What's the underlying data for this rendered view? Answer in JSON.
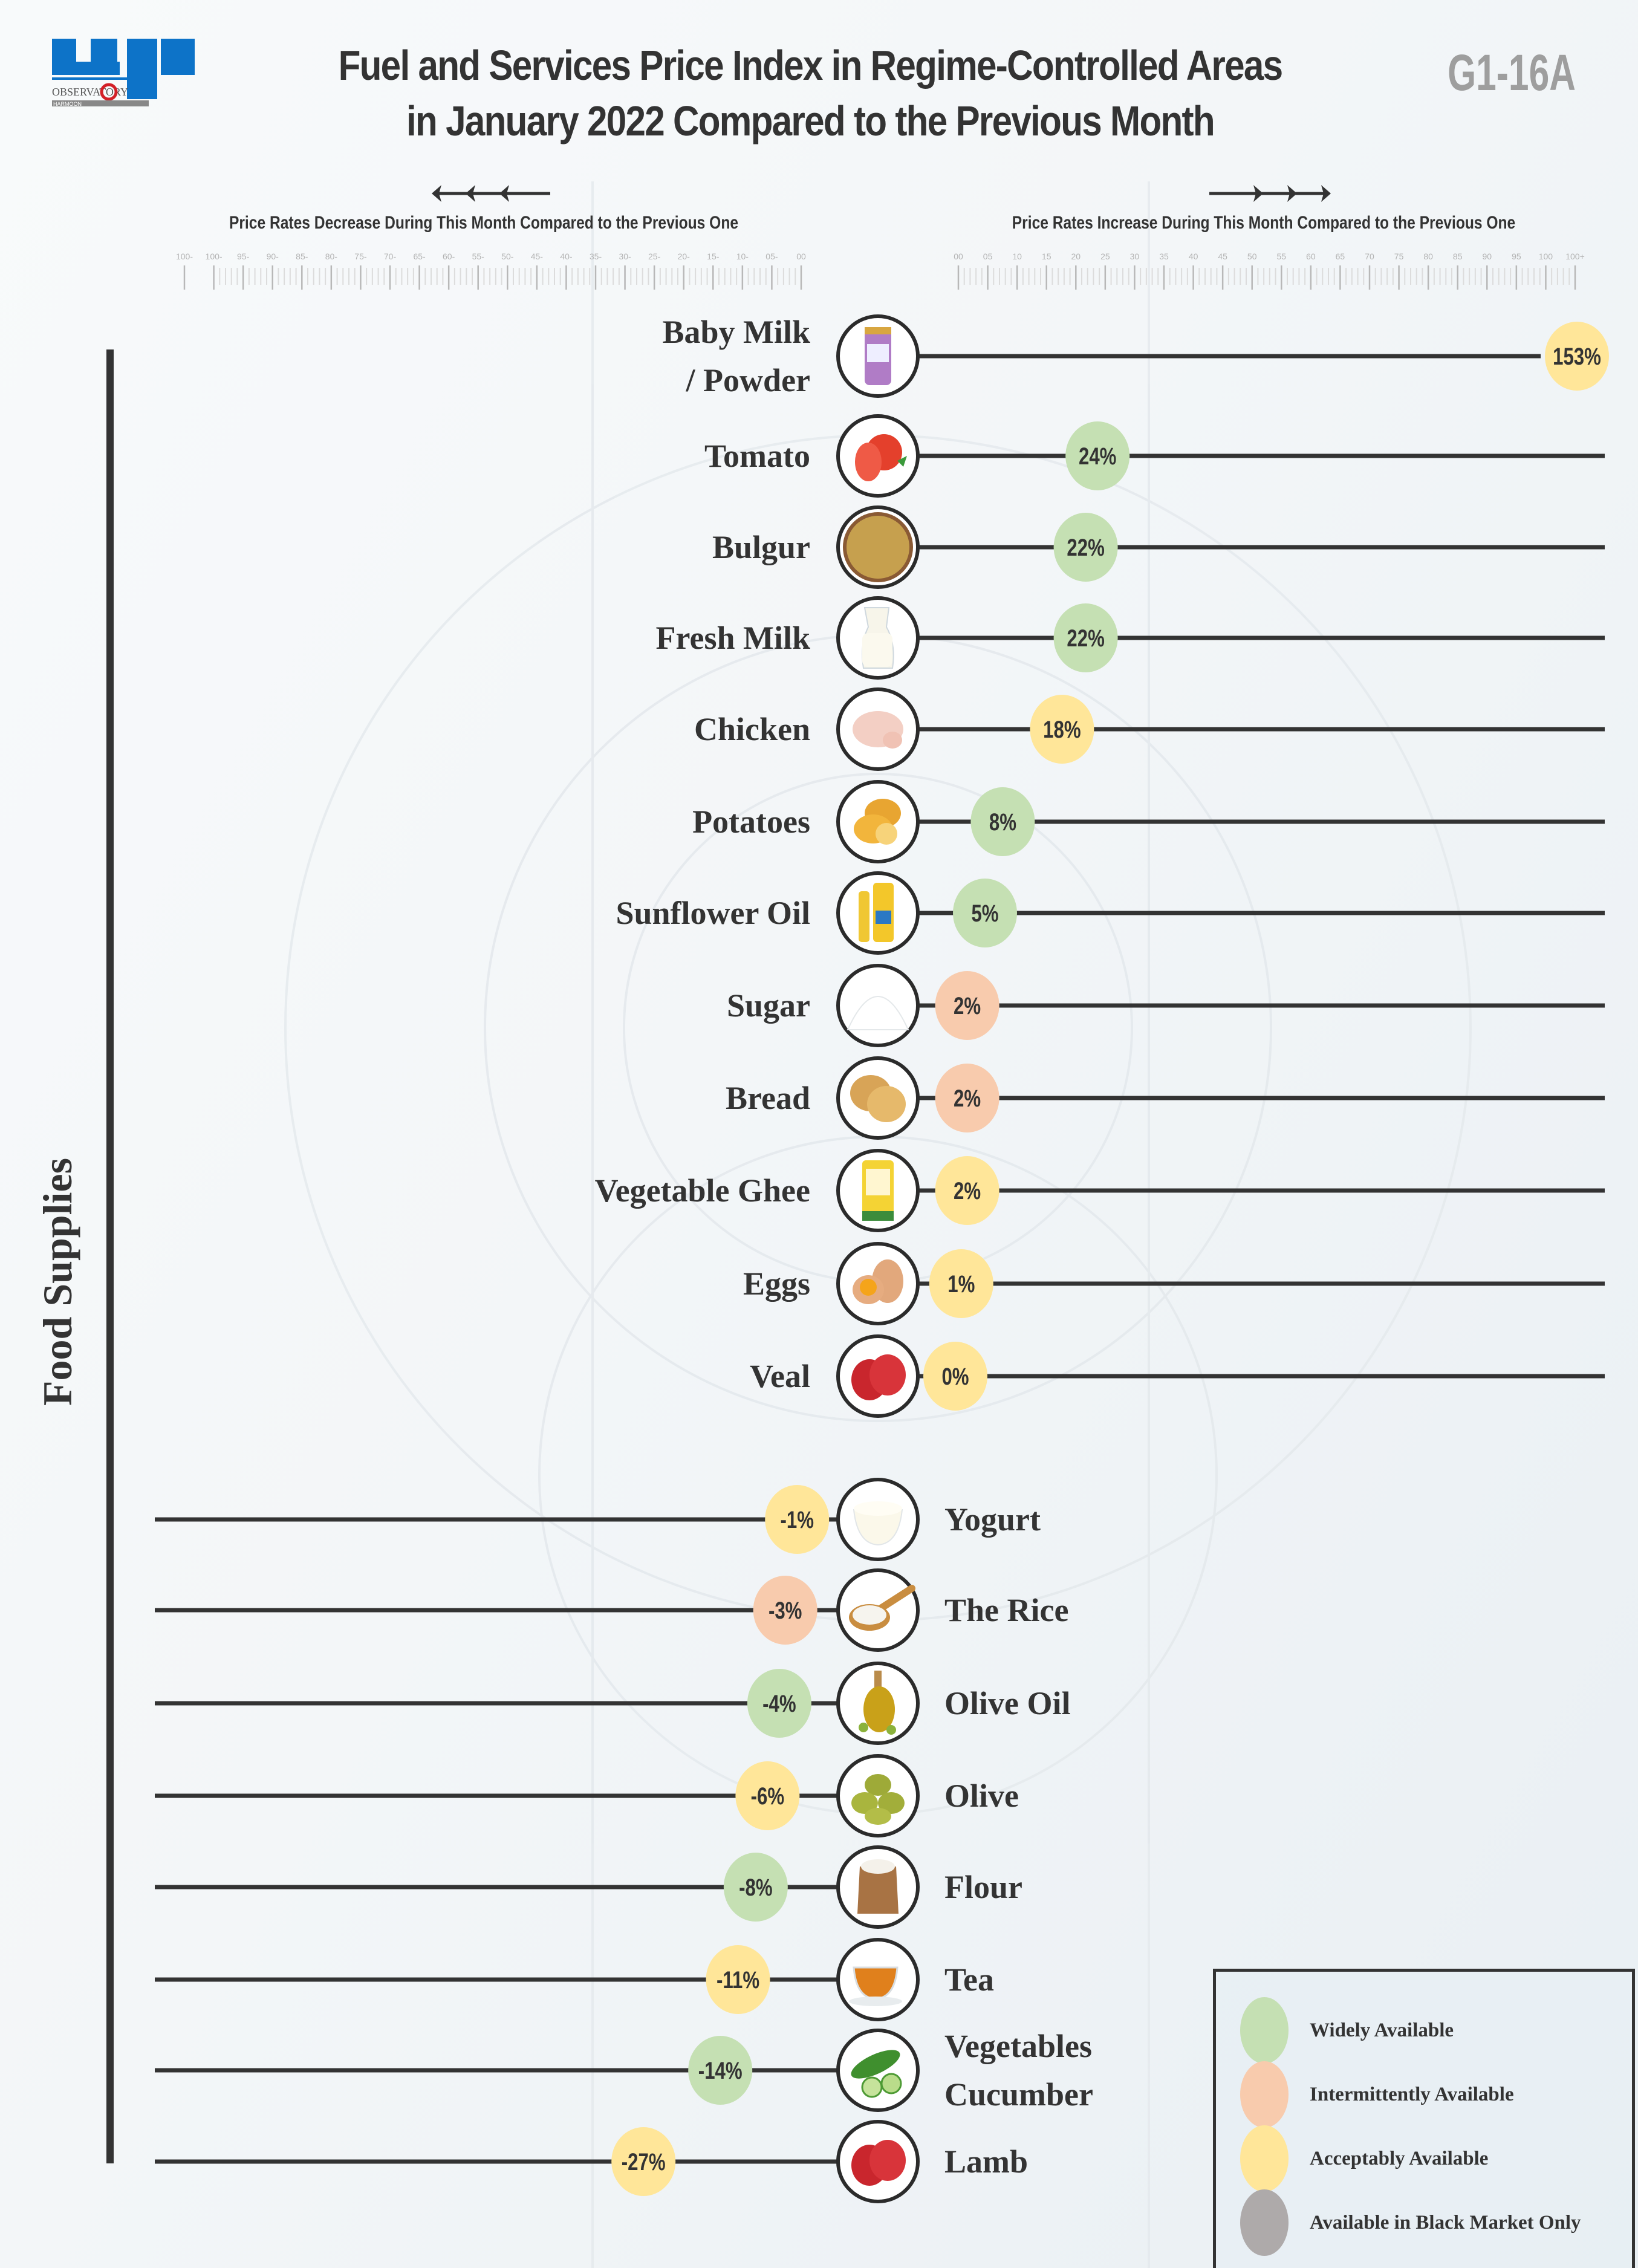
{
  "header": {
    "title_line1": "Fuel and Services Price Index in Regime-Controlled Areas",
    "title_line2": "in January 2022 Compared to the Previous Month",
    "code": "G1-16A",
    "logo_text": "OBSERVATORY",
    "logo_subtext": "HARMOON"
  },
  "directions": {
    "decrease": "Price Rates Decrease During This Month Compared to the Previous One",
    "increase": "Price Rates Increase During This Month Compared to the Previous One"
  },
  "category": "Food Supplies",
  "legend": [
    {
      "label": "Widely Available",
      "color": "#c5e0b3"
    },
    {
      "label": "Intermittently Available",
      "color": "#f8cbad"
    },
    {
      "label": "Acceptably Available",
      "color": "#ffe699"
    },
    {
      "label": "Available in Black Market Only",
      "color": "#aeaaaa"
    }
  ],
  "chart_data": {
    "type": "dot-line",
    "title": "Fuel and Services Price Index in Regime-Controlled Areas in January 2022 Compared to the Previous Month",
    "unit": "%",
    "left_axis": {
      "label": "Price Rates Decrease During This Month Compared to the Previous One",
      "ticks": [
        "100-",
        "100-",
        "95-",
        "90-",
        "85-",
        "80-",
        "75-",
        "70-",
        "65-",
        "60-",
        "55-",
        "50-",
        "45-",
        "40-",
        "35-",
        "30-",
        "25-",
        "20-",
        "15-",
        "10-",
        "05-",
        "00"
      ],
      "range": [
        -100,
        0
      ]
    },
    "right_axis": {
      "label": "Price Rates Increase During This Month Compared to the Previous One",
      "ticks": [
        "00",
        "05",
        "10",
        "15",
        "20",
        "25",
        "30",
        "35",
        "40",
        "45",
        "50",
        "55",
        "60",
        "65",
        "70",
        "75",
        "80",
        "85",
        "90",
        "95",
        "100",
        "100+"
      ],
      "range": [
        0,
        100
      ]
    },
    "items": [
      {
        "name": "Baby Milk",
        "name2": "/ Powder",
        "value": 153,
        "label": "153%",
        "availability": "Acceptably Available",
        "icon": "baby-milk-can"
      },
      {
        "name": "Tomato",
        "value": 24,
        "label": "24%",
        "availability": "Widely Available",
        "icon": "tomato"
      },
      {
        "name": "Bulgur",
        "value": 22,
        "label": "22%",
        "availability": "Widely Available",
        "icon": "bulgur-bowl"
      },
      {
        "name": "Fresh Milk",
        "value": 22,
        "label": "22%",
        "availability": "Widely Available",
        "icon": "milk-jug"
      },
      {
        "name": "Chicken",
        "value": 18,
        "label": "18%",
        "availability": "Acceptably Available",
        "icon": "chicken"
      },
      {
        "name": "Potatoes",
        "value": 8,
        "label": "8%",
        "availability": "Widely Available",
        "icon": "potato"
      },
      {
        "name": "Sunflower Oil",
        "value": 5,
        "label": "5%",
        "availability": "Widely Available",
        "icon": "oil-bottle"
      },
      {
        "name": "Sugar",
        "value": 2,
        "label": "2%",
        "availability": "Intermittently Available",
        "icon": "sugar-pile"
      },
      {
        "name": "Bread",
        "value": 2,
        "label": "2%",
        "availability": "Intermittently Available",
        "icon": "bread"
      },
      {
        "name": "Vegetable Ghee",
        "value": 2,
        "label": "2%",
        "availability": "Acceptably Available",
        "icon": "ghee-can"
      },
      {
        "name": "Eggs",
        "value": 1,
        "label": "1%",
        "availability": "Acceptably Available",
        "icon": "eggs"
      },
      {
        "name": "Veal",
        "value": 0,
        "label": "0%",
        "availability": "Acceptably Available",
        "icon": "meat"
      },
      {
        "name": "Yogurt",
        "value": -1,
        "label": "-1%",
        "availability": "Acceptably Available",
        "icon": "yogurt-bowl"
      },
      {
        "name": "The Rice",
        "value": -3,
        "label": "-3%",
        "availability": "Intermittently Available",
        "icon": "rice-spoon"
      },
      {
        "name": "Olive Oil",
        "value": -4,
        "label": "-4%",
        "availability": "Widely Available",
        "icon": "olive-oil-bottle"
      },
      {
        "name": "Olive",
        "value": -6,
        "label": "-6%",
        "availability": "Acceptably Available",
        "icon": "olives"
      },
      {
        "name": "Flour",
        "value": -8,
        "label": "-8%",
        "availability": "Widely Available",
        "icon": "flour-sack"
      },
      {
        "name": "Tea",
        "value": -11,
        "label": "-11%",
        "availability": "Acceptably Available",
        "icon": "tea-cup"
      },
      {
        "name": "Vegetables",
        "name2": "Cucumber",
        "value": -14,
        "label": "-14%",
        "availability": "Widely Available",
        "icon": "cucumber"
      },
      {
        "name": "Lamb",
        "value": -27,
        "label": "-27%",
        "availability": "Acceptably Available",
        "icon": "meat"
      }
    ]
  }
}
